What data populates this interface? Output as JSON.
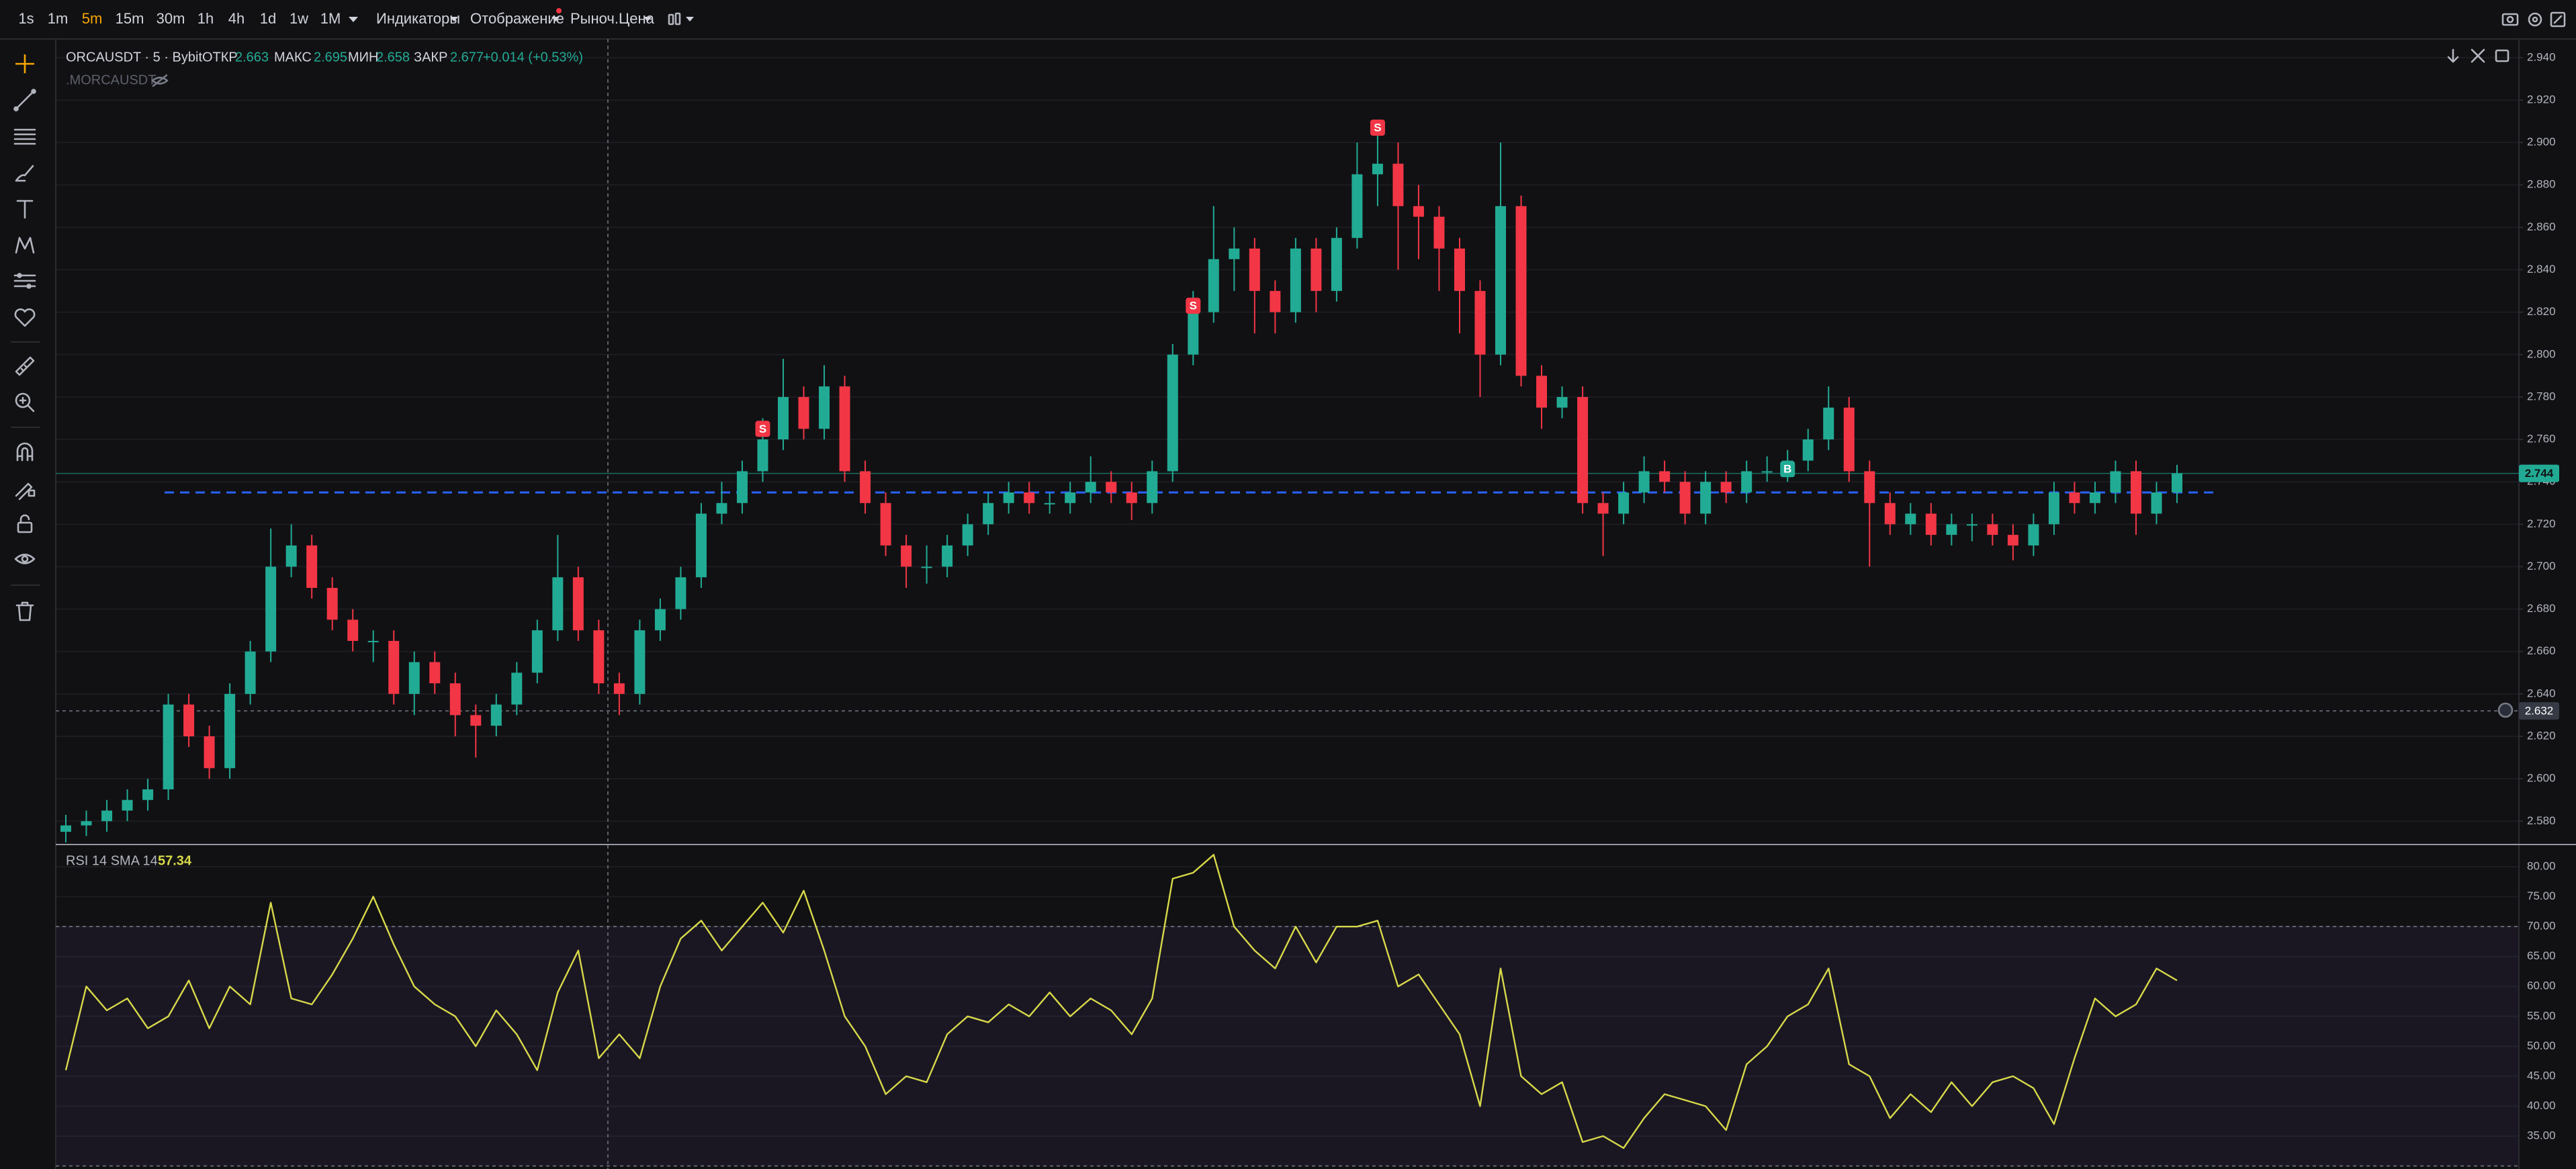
{
  "toolbar": {
    "intervals": [
      "1s",
      "1m",
      "5m",
      "15m",
      "30m",
      "1h",
      "4h",
      "1d",
      "1w",
      "1M"
    ],
    "active_interval": "5m",
    "menus": [
      "Индикаторы",
      "Отображение",
      "Рыноч.Цена"
    ]
  },
  "legend": {
    "symbol": "ORCAUSDT · 5 · Bybit",
    "open_label": "ОТКР",
    "open": 2.663,
    "high_label": "МАКС",
    "high": 2.695,
    "low_label": "МИН",
    "low": 2.658,
    "close_label": "ЗАКР",
    "close": 2.677,
    "change": "+0.014 (+0.53%)",
    "overlay": ".MORCAUSDT"
  },
  "chart_data": [
    {
      "type": "candlestick",
      "title": "ORCAUSDT · 5 · Bybit",
      "up_color": "#22ab94",
      "down_color": "#f23645",
      "open": [
        2.575,
        2.578,
        2.58,
        2.585,
        2.59,
        2.595,
        2.635,
        2.62,
        2.605,
        2.64,
        2.66,
        2.7,
        2.71,
        2.69,
        2.675,
        2.665,
        2.665,
        2.64,
        2.655,
        2.645,
        2.63,
        2.625,
        2.635,
        2.65,
        2.67,
        2.695,
        2.67,
        2.645,
        2.64,
        2.67,
        2.68,
        2.695,
        2.725,
        2.73,
        2.745,
        2.76,
        2.78,
        2.765,
        2.785,
        2.745,
        2.73,
        2.71,
        2.7,
        2.7,
        2.71,
        2.72,
        2.73,
        2.735,
        2.73,
        2.73,
        2.735,
        2.74,
        2.735,
        2.73,
        2.745,
        2.8,
        2.82,
        2.845,
        2.85,
        2.83,
        2.82,
        2.85,
        2.83,
        2.855,
        2.885,
        2.89,
        2.87,
        2.865,
        2.85,
        2.83,
        2.8,
        2.87,
        2.79,
        2.775,
        2.78,
        2.73,
        2.725,
        2.735,
        2.745,
        2.74,
        2.725,
        2.74,
        2.735,
        2.745,
        2.745,
        2.75,
        2.76,
        2.775,
        2.745,
        2.73,
        2.72,
        2.725,
        2.715,
        2.72,
        2.72,
        2.715,
        2.71,
        2.72,
        2.735,
        2.73,
        2.735,
        2.745,
        2.725,
        2.735
      ],
      "high": [
        2.583,
        2.585,
        2.59,
        2.595,
        2.6,
        2.64,
        2.64,
        2.625,
        2.645,
        2.665,
        2.718,
        2.72,
        2.715,
        2.695,
        2.68,
        2.67,
        2.67,
        2.66,
        2.66,
        2.65,
        2.635,
        2.64,
        2.655,
        2.675,
        2.715,
        2.7,
        2.675,
        2.65,
        2.675,
        2.685,
        2.7,
        2.73,
        2.74,
        2.75,
        2.77,
        2.798,
        2.785,
        2.795,
        2.79,
        2.75,
        2.735,
        2.715,
        2.71,
        2.715,
        2.725,
        2.735,
        2.74,
        2.74,
        2.735,
        2.74,
        2.752,
        2.745,
        2.74,
        2.75,
        2.805,
        2.83,
        2.87,
        2.86,
        2.855,
        2.835,
        2.855,
        2.855,
        2.86,
        2.9,
        2.905,
        2.9,
        2.88,
        2.87,
        2.855,
        2.835,
        2.9,
        2.875,
        2.795,
        2.785,
        2.785,
        2.735,
        2.74,
        2.752,
        2.75,
        2.745,
        2.745,
        2.745,
        2.75,
        2.752,
        2.755,
        2.765,
        2.785,
        2.78,
        2.75,
        2.735,
        2.73,
        2.73,
        2.725,
        2.725,
        2.725,
        2.72,
        2.725,
        2.74,
        2.74,
        2.74,
        2.75,
        2.75,
        2.74,
        2.748
      ],
      "low": [
        2.57,
        2.573,
        2.575,
        2.58,
        2.585,
        2.59,
        2.615,
        2.6,
        2.6,
        2.635,
        2.655,
        2.695,
        2.685,
        2.67,
        2.66,
        2.655,
        2.635,
        2.63,
        2.64,
        2.62,
        2.61,
        2.62,
        2.63,
        2.645,
        2.665,
        2.665,
        2.64,
        2.63,
        2.635,
        2.665,
        2.675,
        2.69,
        2.72,
        2.725,
        2.74,
        2.755,
        2.76,
        2.76,
        2.74,
        2.725,
        2.705,
        2.69,
        2.692,
        2.695,
        2.705,
        2.715,
        2.725,
        2.725,
        2.725,
        2.725,
        2.73,
        2.73,
        2.722,
        2.725,
        2.74,
        2.795,
        2.815,
        2.83,
        2.81,
        2.81,
        2.815,
        2.82,
        2.825,
        2.85,
        2.87,
        2.84,
        2.845,
        2.83,
        2.81,
        2.78,
        2.795,
        2.785,
        2.765,
        2.77,
        2.725,
        2.705,
        2.72,
        2.73,
        2.735,
        2.72,
        2.72,
        2.73,
        2.73,
        2.74,
        2.74,
        2.745,
        2.755,
        2.74,
        2.7,
        2.715,
        2.715,
        2.71,
        2.71,
        2.712,
        2.71,
        2.703,
        2.705,
        2.715,
        2.725,
        2.725,
        2.73,
        2.715,
        2.72,
        2.73
      ],
      "close": [
        2.578,
        2.58,
        2.585,
        2.59,
        2.595,
        2.635,
        2.62,
        2.605,
        2.64,
        2.66,
        2.7,
        2.71,
        2.69,
        2.675,
        2.665,
        2.665,
        2.64,
        2.655,
        2.645,
        2.63,
        2.625,
        2.635,
        2.65,
        2.67,
        2.695,
        2.67,
        2.645,
        2.64,
        2.67,
        2.68,
        2.695,
        2.725,
        2.73,
        2.745,
        2.76,
        2.78,
        2.765,
        2.785,
        2.745,
        2.73,
        2.71,
        2.7,
        2.7,
        2.71,
        2.72,
        2.73,
        2.735,
        2.73,
        2.73,
        2.735,
        2.74,
        2.735,
        2.73,
        2.745,
        2.8,
        2.82,
        2.845,
        2.85,
        2.83,
        2.82,
        2.85,
        2.83,
        2.855,
        2.885,
        2.89,
        2.87,
        2.865,
        2.85,
        2.83,
        2.8,
        2.87,
        2.79,
        2.775,
        2.78,
        2.73,
        2.725,
        2.735,
        2.745,
        2.74,
        2.725,
        2.74,
        2.735,
        2.745,
        2.745,
        2.75,
        2.76,
        2.775,
        2.745,
        2.73,
        2.72,
        2.725,
        2.715,
        2.72,
        2.72,
        2.715,
        2.71,
        2.72,
        2.735,
        2.73,
        2.735,
        2.745,
        2.725,
        2.735,
        2.744
      ],
      "ylim": [
        2.569,
        2.9485
      ],
      "yticks": [
        {
          "value": 2.58,
          "label": "2.580"
        },
        {
          "value": 2.6,
          "label": "2.600"
        },
        {
          "value": 2.62,
          "label": "2.620"
        },
        {
          "value": 2.64,
          "label": "2.640"
        },
        {
          "value": 2.66,
          "label": "2.660"
        },
        {
          "value": 2.68,
          "label": "2.680"
        },
        {
          "value": 2.7,
          "label": "2.700"
        },
        {
          "value": 2.72,
          "label": "2.720"
        },
        {
          "value": 2.74,
          "label": "2.740"
        },
        {
          "value": 2.76,
          "label": "2.760"
        },
        {
          "value": 2.78,
          "label": "2.780"
        },
        {
          "value": 2.8,
          "label": "2.800"
        },
        {
          "value": 2.82,
          "label": "2.820"
        },
        {
          "value": 2.84,
          "label": "2.840"
        },
        {
          "value": 2.86,
          "label": "2.860"
        },
        {
          "value": 2.88,
          "label": "2.880"
        },
        {
          "value": 2.9,
          "label": "2.900"
        },
        {
          "value": 2.92,
          "label": "2.920"
        },
        {
          "value": 2.94,
          "label": "2.940"
        }
      ],
      "grid": true,
      "last_price": 2.744,
      "crosshair_price": 2.632,
      "level": {
        "value": 2.735,
        "color": "#2962ff"
      },
      "markers": [
        {
          "text": "S",
          "candle": 34,
          "price": 2.765,
          "color": "#f23645"
        },
        {
          "text": "S",
          "candle": 55,
          "price": 2.823,
          "color": "#f23645"
        },
        {
          "text": "S",
          "candle": 64,
          "price": 2.907,
          "color": "#f23645"
        },
        {
          "text": "B",
          "candle": 84,
          "price": 2.746,
          "color": "#22ab94"
        }
      ]
    },
    {
      "type": "line",
      "title": "RSI 14 SMA 14",
      "value_label": 57.34,
      "color": "#d8d84a",
      "values": [
        46,
        60,
        56,
        58,
        53,
        55,
        61,
        53,
        60,
        57,
        74,
        58,
        57,
        62,
        68,
        75,
        67,
        60,
        57,
        55,
        50,
        56,
        52,
        46,
        59,
        66,
        48,
        52,
        48,
        60,
        68,
        71,
        66,
        70,
        74,
        69,
        76,
        66,
        55,
        50,
        42,
        45,
        44,
        52,
        55,
        54,
        57,
        55,
        59,
        55,
        58,
        56,
        52,
        58,
        78,
        79,
        82,
        70,
        66,
        63,
        70,
        64,
        70,
        70,
        71,
        60,
        62,
        57,
        52,
        40,
        63,
        45,
        42,
        44,
        34,
        35,
        33,
        38,
        42,
        41,
        40,
        36,
        47,
        50,
        55,
        57,
        63,
        47,
        45,
        38,
        42,
        39,
        44,
        40,
        44,
        45,
        43,
        37,
        48,
        58,
        55,
        57,
        63,
        61
      ],
      "band": [
        30,
        70
      ],
      "ylim": [
        29.5,
        83.6
      ],
      "yticks": [
        {
          "value": 35,
          "label": "35.00"
        },
        {
          "value": 40,
          "label": "40.00"
        },
        {
          "value": 45,
          "label": "45.00"
        },
        {
          "value": 50,
          "label": "50.00"
        },
        {
          "value": 55,
          "label": "55.00"
        },
        {
          "value": 60,
          "label": "60.00"
        },
        {
          "value": 65,
          "label": "65.00"
        },
        {
          "value": 70,
          "label": "70.00"
        },
        {
          "value": 75,
          "label": "75.00"
        },
        {
          "value": 80,
          "label": "80.00"
        }
      ]
    }
  ]
}
